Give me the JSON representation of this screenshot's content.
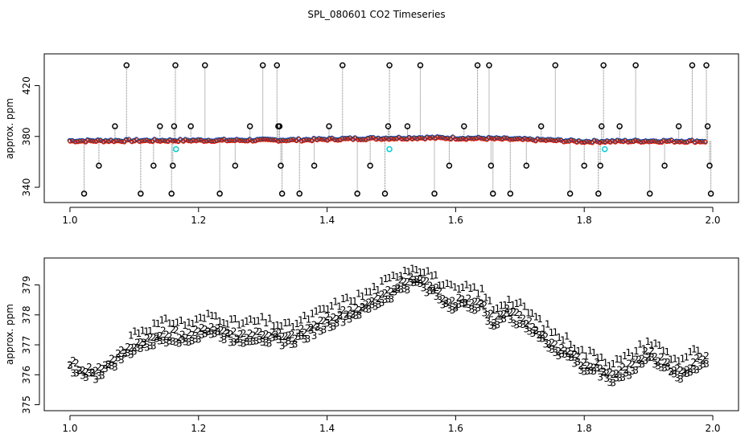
{
  "page_title": "SPL_080601  CO2 Timeseries",
  "chart_data": [
    {
      "type": "scatter",
      "ylabel": "approx. ppm",
      "xlim": [
        0.96,
        2.04
      ],
      "ylim": [
        328,
        445
      ],
      "x_ticks": [
        1.0,
        1.2,
        1.4,
        1.6,
        1.8,
        2.0
      ],
      "x_tick_labels": [
        "1.0",
        "1.2",
        "1.4",
        "1.6",
        "1.8",
        "2.0"
      ],
      "y_ticks": [
        340,
        380,
        420
      ],
      "y_tick_labels": [
        "340",
        "380",
        "420"
      ],
      "start": 1.0,
      "end": 1.99,
      "step": 0.004,
      "baseline": {
        "x": [
          1.0,
          1.2,
          1.35,
          1.45,
          1.55,
          1.65,
          1.75,
          1.8,
          1.9,
          1.99
        ],
        "y": [
          376.5,
          376.9,
          377.2,
          378.3,
          379.0,
          378.4,
          377.0,
          376.0,
          376.4,
          376.2
        ]
      },
      "series": [
        {
          "name": "black circles",
          "color": "#000000",
          "size": 3,
          "points": [
            [
              1.022,
              335
            ],
            [
              1.045,
              357
            ],
            [
              1.07,
              388
            ],
            [
              1.088,
              436
            ],
            [
              1.11,
              335
            ],
            [
              1.13,
              357
            ],
            [
              1.14,
              388
            ],
            [
              1.158,
              335
            ],
            [
              1.16,
              357
            ],
            [
              1.162,
              388
            ],
            [
              1.164,
              436
            ],
            [
              1.188,
              388
            ],
            [
              1.21,
              436
            ],
            [
              1.233,
              335
            ],
            [
              1.257,
              357
            ],
            [
              1.28,
              388
            ],
            [
              1.3,
              436
            ],
            [
              1.322,
              436
            ],
            [
              1.324,
              388
            ],
            [
              1.326,
              388
            ],
            [
              1.328,
              357
            ],
            [
              1.33,
              335
            ],
            [
              1.357,
              335
            ],
            [
              1.38,
              357
            ],
            [
              1.403,
              388
            ],
            [
              1.424,
              436
            ],
            [
              1.447,
              335
            ],
            [
              1.467,
              357
            ],
            [
              1.49,
              335
            ],
            [
              1.495,
              388
            ],
            [
              1.497,
              436
            ],
            [
              1.525,
              388
            ],
            [
              1.545,
              436
            ],
            [
              1.567,
              335
            ],
            [
              1.59,
              357
            ],
            [
              1.613,
              388
            ],
            [
              1.634,
              436
            ],
            [
              1.652,
              436
            ],
            [
              1.655,
              357
            ],
            [
              1.658,
              335
            ],
            [
              1.685,
              335
            ],
            [
              1.71,
              357
            ],
            [
              1.733,
              388
            ],
            [
              1.755,
              436
            ],
            [
              1.778,
              335
            ],
            [
              1.8,
              357
            ],
            [
              1.822,
              335
            ],
            [
              1.825,
              357
            ],
            [
              1.827,
              388
            ],
            [
              1.83,
              436
            ],
            [
              1.855,
              388
            ],
            [
              1.88,
              436
            ],
            [
              1.902,
              335
            ],
            [
              1.925,
              357
            ],
            [
              1.947,
              388
            ],
            [
              1.968,
              436
            ],
            [
              1.99,
              436
            ],
            [
              1.992,
              388
            ],
            [
              1.995,
              357
            ],
            [
              1.997,
              335
            ]
          ]
        },
        {
          "name": "cyan circles",
          "color": "#00d0d8",
          "size": 3,
          "points": [
            [
              1.165,
              370
            ],
            [
              1.497,
              370
            ],
            [
              1.832,
              370
            ]
          ]
        }
      ]
    },
    {
      "type": "scatter",
      "ylabel": "approx. ppm",
      "xlim": [
        0.96,
        2.04
      ],
      "ylim": [
        374.8,
        379.9
      ],
      "x_ticks": [
        1.0,
        1.2,
        1.4,
        1.6,
        1.8,
        2.0
      ],
      "x_tick_labels": [
        "1.0",
        "1.2",
        "1.4",
        "1.6",
        "1.8",
        "2.0"
      ],
      "y_ticks": [
        375,
        376,
        377,
        378,
        379
      ],
      "y_tick_labels": [
        "375",
        "376",
        "377",
        "378",
        "379"
      ],
      "curve": {
        "x": [
          1.0,
          1.02,
          1.04,
          1.06,
          1.08,
          1.1,
          1.14,
          1.16,
          1.18,
          1.2,
          1.22,
          1.26,
          1.3,
          1.34,
          1.36,
          1.38,
          1.4,
          1.42,
          1.46,
          1.5,
          1.52,
          1.54,
          1.56,
          1.58,
          1.6,
          1.62,
          1.64,
          1.66,
          1.68,
          1.7,
          1.72,
          1.74,
          1.76,
          1.78,
          1.8,
          1.82,
          1.84,
          1.86,
          1.88,
          1.9,
          1.92,
          1.94,
          1.96,
          1.98
        ],
        "y": [
          376.3,
          376.1,
          376.0,
          376.3,
          376.6,
          376.9,
          377.2,
          377.3,
          377.2,
          377.3,
          377.5,
          377.2,
          377.3,
          377.1,
          377.3,
          377.5,
          377.7,
          377.9,
          378.2,
          378.7,
          379.0,
          379.1,
          378.9,
          378.5,
          378.3,
          378.4,
          378.3,
          377.7,
          378.0,
          377.8,
          377.5,
          377.1,
          376.8,
          376.6,
          376.2,
          376.2,
          375.9,
          376.0,
          376.3,
          376.6,
          376.4,
          376.0,
          376.1,
          376.4
        ]
      },
      "series": [
        {
          "name": "1",
          "label": "1",
          "color": "#ff0000",
          "offset": 0.5,
          "x_start": 1.095,
          "x_end": 1.98,
          "step": 0.006
        },
        {
          "name": "2",
          "label": "2",
          "color": "#00c000",
          "offset": 0.12,
          "x_start": 1.0,
          "x_end": 1.99,
          "step": 0.005
        },
        {
          "name": "3",
          "label": "3",
          "color": "#0000ff",
          "offset": -0.08,
          "x_start": 1.0,
          "x_end": 1.99,
          "step": 0.005
        }
      ]
    }
  ]
}
